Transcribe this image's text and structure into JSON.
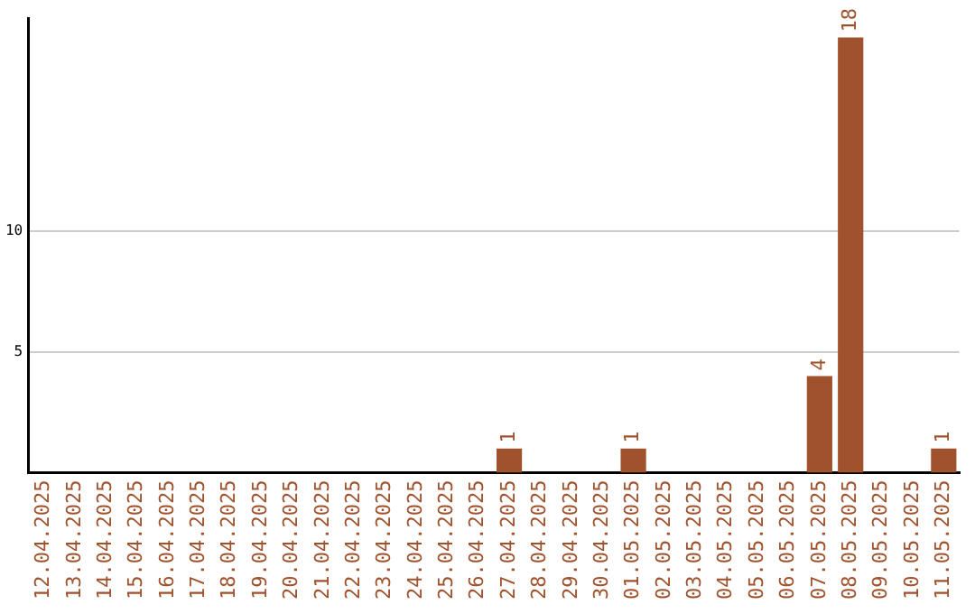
{
  "chart_data": {
    "type": "bar",
    "categories": [
      "12.04.2025",
      "13.04.2025",
      "14.04.2025",
      "15.04.2025",
      "16.04.2025",
      "17.04.2025",
      "18.04.2025",
      "19.04.2025",
      "20.04.2025",
      "21.04.2025",
      "22.04.2025",
      "23.04.2025",
      "24.04.2025",
      "25.04.2025",
      "26.04.2025",
      "27.04.2025",
      "28.04.2025",
      "29.04.2025",
      "30.04.2025",
      "01.05.2025",
      "02.05.2025",
      "03.05.2025",
      "04.05.2025",
      "05.05.2025",
      "06.05.2025",
      "07.05.2025",
      "08.05.2025",
      "09.05.2025",
      "10.05.2025",
      "11.05.2025"
    ],
    "values": [
      0,
      0,
      0,
      0,
      0,
      0,
      0,
      0,
      0,
      0,
      0,
      0,
      0,
      0,
      0,
      1,
      0,
      0,
      0,
      1,
      0,
      0,
      0,
      0,
      0,
      4,
      18,
      0,
      0,
      1
    ],
    "value_labels": [
      null,
      null,
      null,
      null,
      null,
      null,
      null,
      null,
      null,
      null,
      null,
      null,
      null,
      null,
      null,
      "1",
      null,
      null,
      null,
      "1",
      null,
      null,
      null,
      null,
      null,
      "4",
      "18",
      null,
      null,
      "1"
    ],
    "color": "#a0522d",
    "ylim": [
      0,
      18.8
    ],
    "yticks": [
      5,
      10
    ],
    "grid": "y",
    "legend": false
  }
}
